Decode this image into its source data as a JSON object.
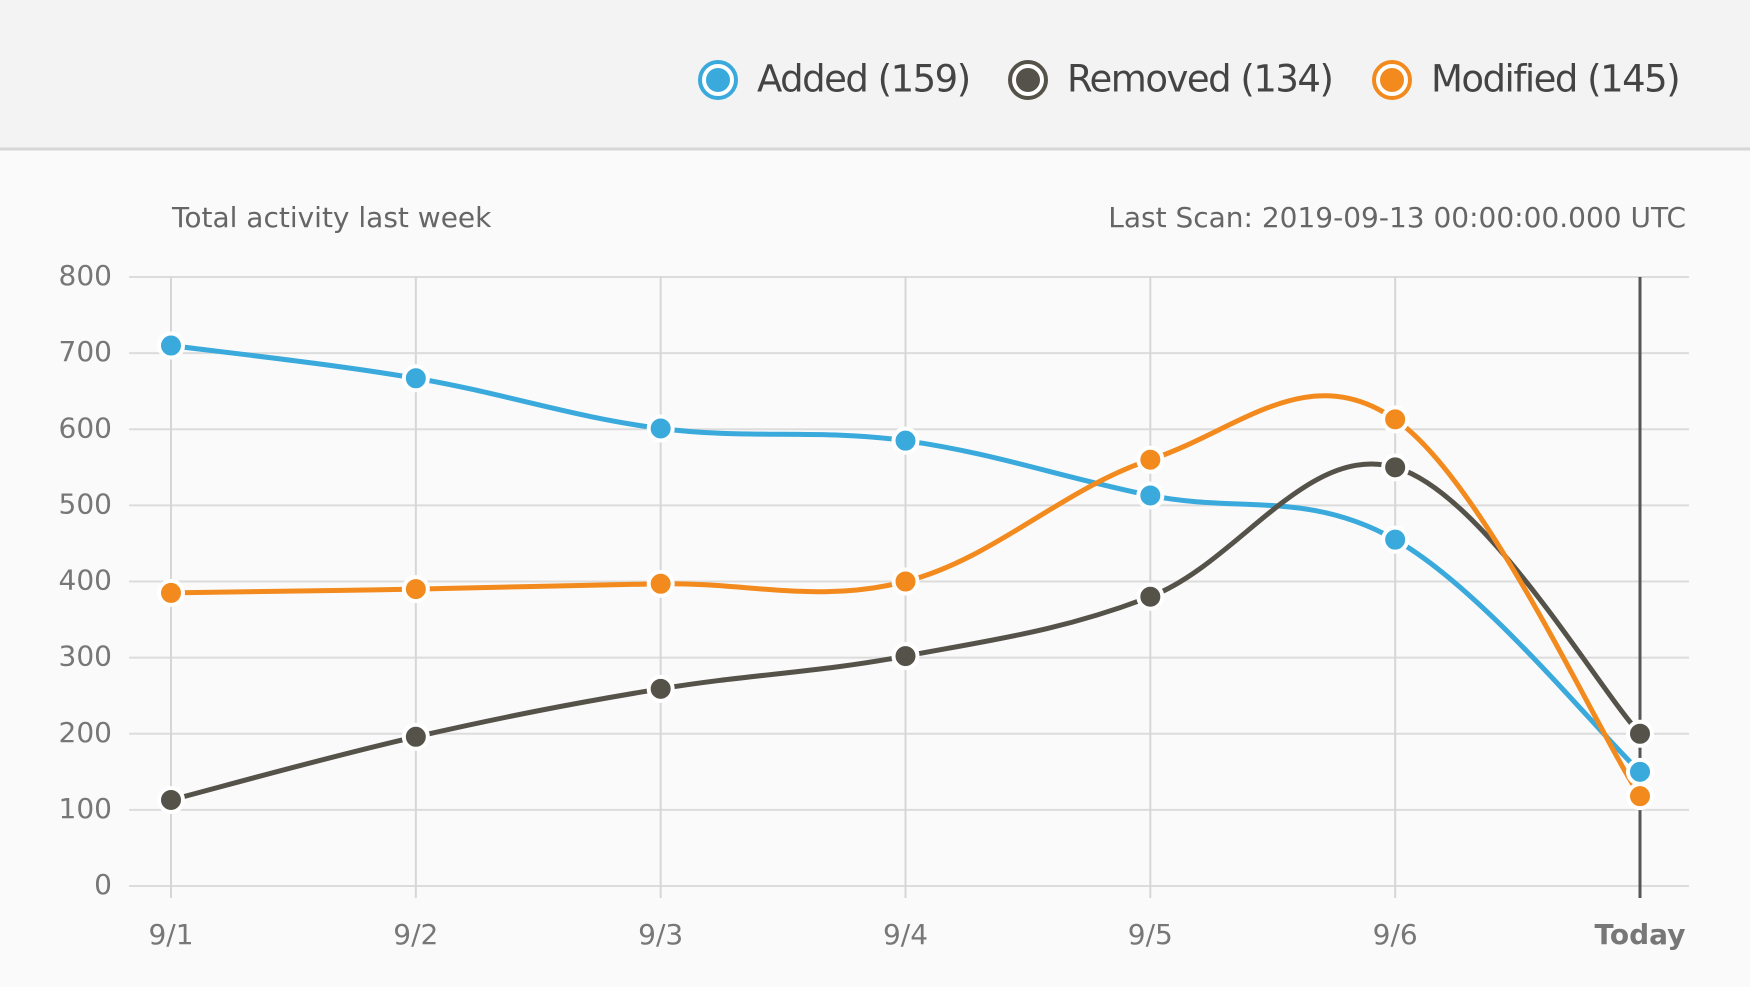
{
  "chart_data": {
    "type": "line",
    "subtitle": "Total activity last week",
    "annotation": "Last Scan: 2019-09-13 00:00:00.000 UTC",
    "categories": [
      "9/1",
      "9/2",
      "9/3",
      "9/4",
      "9/5",
      "9/6",
      "Today"
    ],
    "series": [
      {
        "name": "Added (159)",
        "color": "#3aa9dc",
        "values": [
          710,
          667,
          601,
          585,
          513,
          455,
          150
        ]
      },
      {
        "name": "Removed (134)",
        "color": "#55524a",
        "values": [
          113,
          196,
          259,
          302,
          380,
          550,
          200
        ]
      },
      {
        "name": "Modified (145)",
        "color": "#f28a1e",
        "values": [
          385,
          390,
          397,
          400,
          560,
          613,
          118
        ]
      }
    ],
    "ylim": [
      0,
      800
    ],
    "yticks": [
      0,
      100,
      200,
      300,
      400,
      500,
      600,
      700,
      800
    ],
    "grid": true,
    "legend": "top-right"
  }
}
